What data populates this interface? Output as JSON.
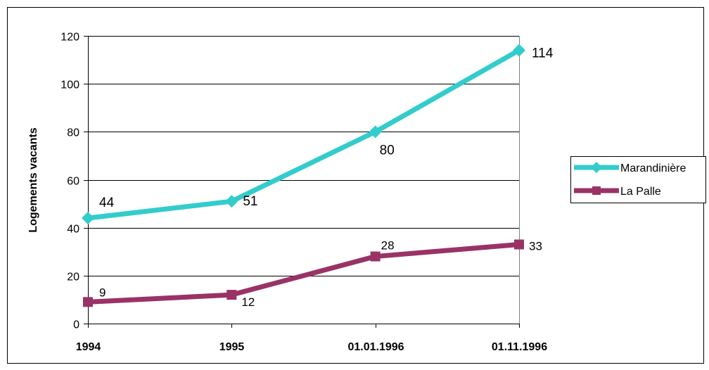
{
  "chart_data": {
    "type": "line",
    "title": "",
    "xlabel": "",
    "ylabel": "Logements vacants",
    "categories": [
      "1994",
      "1995",
      "01.01.1996",
      "01.11.1996"
    ],
    "yticks": [
      "0",
      "20",
      "40",
      "60",
      "80",
      "100",
      "120"
    ],
    "ylim": [
      0,
      120
    ],
    "grid": true,
    "legend_position": "right",
    "series": [
      {
        "name": "Marandinière",
        "values": [
          44,
          51,
          80,
          114
        ],
        "labels": [
          "44",
          "51",
          "80",
          "114"
        ],
        "color": "#33CCCC",
        "marker": "diamond"
      },
      {
        "name": "La Palle",
        "values": [
          9,
          12,
          28,
          33
        ],
        "labels": [
          "9",
          "12",
          "28",
          "33"
        ],
        "color": "#993366",
        "marker": "square"
      }
    ]
  }
}
